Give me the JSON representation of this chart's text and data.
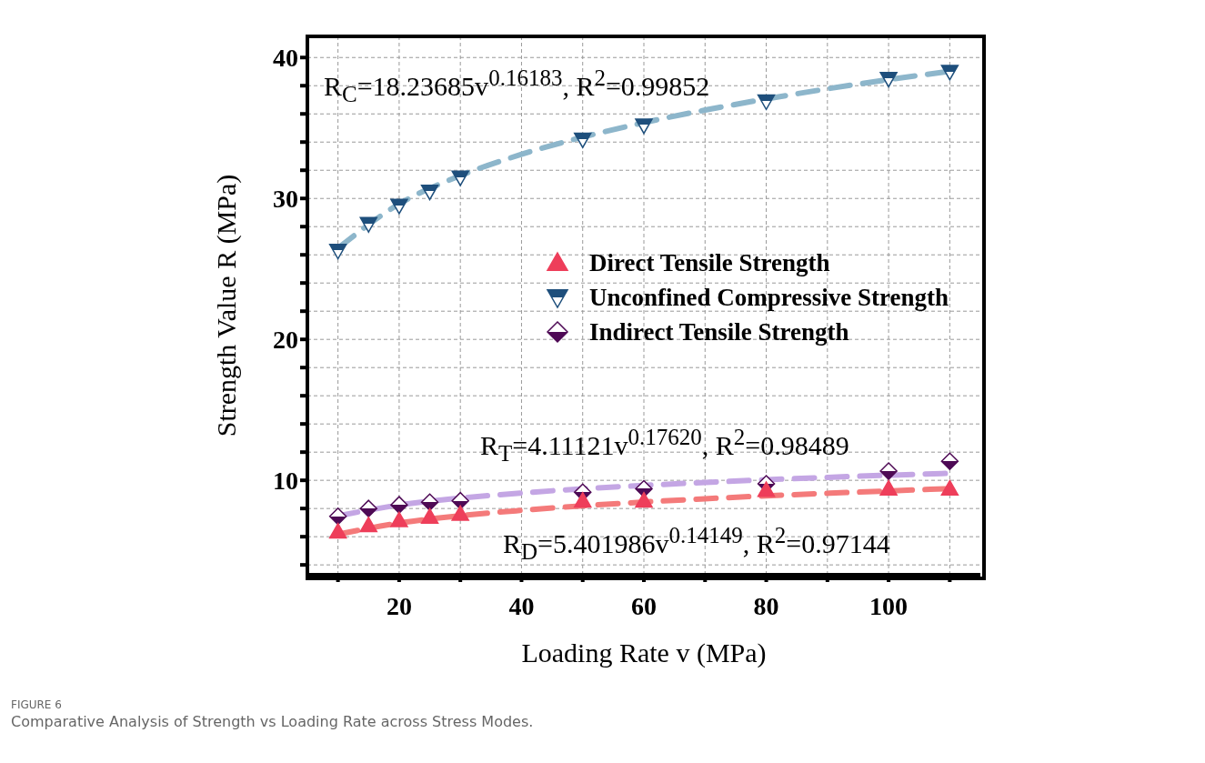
{
  "chart_data": {
    "type": "scatter",
    "xlabel": "Loading Rate v (MPa)",
    "ylabel": "Strength Value R (MPa)",
    "xlim": [
      5,
      115
    ],
    "ylim": [
      3.3,
      41.5
    ],
    "xticks": [
      {
        "value": 10,
        "label": null
      },
      20,
      {
        "value": 30,
        "label": null
      },
      40,
      {
        "value": 50,
        "label": null
      },
      60,
      {
        "value": 70,
        "label": null
      },
      80,
      {
        "value": 90,
        "label": null
      },
      100,
      {
        "value": 110,
        "label": null
      }
    ],
    "yticks": [
      {
        "value": 4,
        "label": null
      },
      {
        "value": 6,
        "label": null
      },
      {
        "value": 8,
        "label": null
      },
      10,
      {
        "value": 12,
        "label": null
      },
      {
        "value": 14,
        "label": null
      },
      {
        "value": 16,
        "label": null
      },
      {
        "value": 18,
        "label": null
      },
      20,
      {
        "value": 22,
        "label": null
      },
      {
        "value": 24,
        "label": null
      },
      {
        "value": 26,
        "label": null
      },
      {
        "value": 28,
        "label": null
      },
      30,
      {
        "value": 32,
        "label": null
      },
      {
        "value": 34,
        "label": null
      },
      {
        "value": 36,
        "label": null
      },
      {
        "value": 38,
        "label": null
      },
      40
    ],
    "grid": true,
    "legend": "right",
    "series": [
      {
        "type": "line",
        "color": "#8db6cb",
        "line_style": "dashed",
        "x": [
          10,
          20,
          30,
          40,
          50,
          60,
          70,
          80,
          90,
          100,
          110
        ],
        "values": [
          26.47,
          29.61,
          31.62,
          33.13,
          34.35,
          35.38,
          36.27,
          37.06,
          37.78,
          38.43,
          39.02
        ]
      },
      {
        "type": "line",
        "color": "#c4a6e4",
        "line_style": "dashed",
        "x": [
          10,
          22,
          30,
          40,
          50,
          60,
          70,
          80,
          90,
          104,
          110
        ],
        "values": [
          7.48,
          8.37,
          8.74,
          9.1,
          9.4,
          9.64,
          9.85,
          10.04,
          10.21,
          10.42,
          10.5
        ]
      },
      {
        "type": "line",
        "color": "#f47a7a",
        "line_style": "dashed",
        "x": [
          10,
          20,
          30,
          40,
          50,
          60,
          70,
          80,
          90,
          100,
          110
        ],
        "values": [
          6.17,
          6.97,
          7.49,
          7.87,
          8.19,
          8.46,
          8.69,
          8.9,
          9.08,
          9.25,
          9.41
        ]
      },
      {
        "name": "Direct Tensile Strength",
        "marker": "triangle",
        "color": "#ee3e5a",
        "x": [
          10,
          15,
          20,
          25,
          30,
          50,
          60,
          80,
          100,
          110
        ],
        "values": [
          6.35,
          6.8,
          7.15,
          7.4,
          7.6,
          8.55,
          8.55,
          9.3,
          9.4,
          9.4
        ]
      },
      {
        "name": "Unconfined Compressive Strength",
        "marker": "triangle-down",
        "color": "#1e4f7c",
        "x": [
          10,
          15,
          20,
          25,
          30,
          50,
          60,
          80,
          100,
          110
        ],
        "values": [
          26.3,
          28.2,
          29.5,
          30.5,
          31.5,
          34.2,
          35.2,
          36.9,
          38.5,
          39.0
        ]
      },
      {
        "name": "Indirect Tensile Strength",
        "marker": "diamond",
        "color": "#4e0a55",
        "x": [
          10,
          15,
          20,
          25,
          30,
          50,
          60,
          80,
          100,
          110
        ],
        "values": [
          7.45,
          8.0,
          8.26,
          8.45,
          8.55,
          9.15,
          9.4,
          9.75,
          10.65,
          11.35
        ]
      }
    ],
    "annotations": [
      "R$_{C}$=18.23685v$^{0.16183}$, R$^{2}$=0.99852",
      "R$_{T}$=4.11121v$^{0.17620}$, R$^{2}$=0.98489",
      "R$_{D}$=5.401986v$^{0.14149}$, R$^{2}$=0.97144",
      "FIGURE 6",
      "Comparative Analysis of Strength vs Loading Rate across Stress Modes."
    ]
  }
}
